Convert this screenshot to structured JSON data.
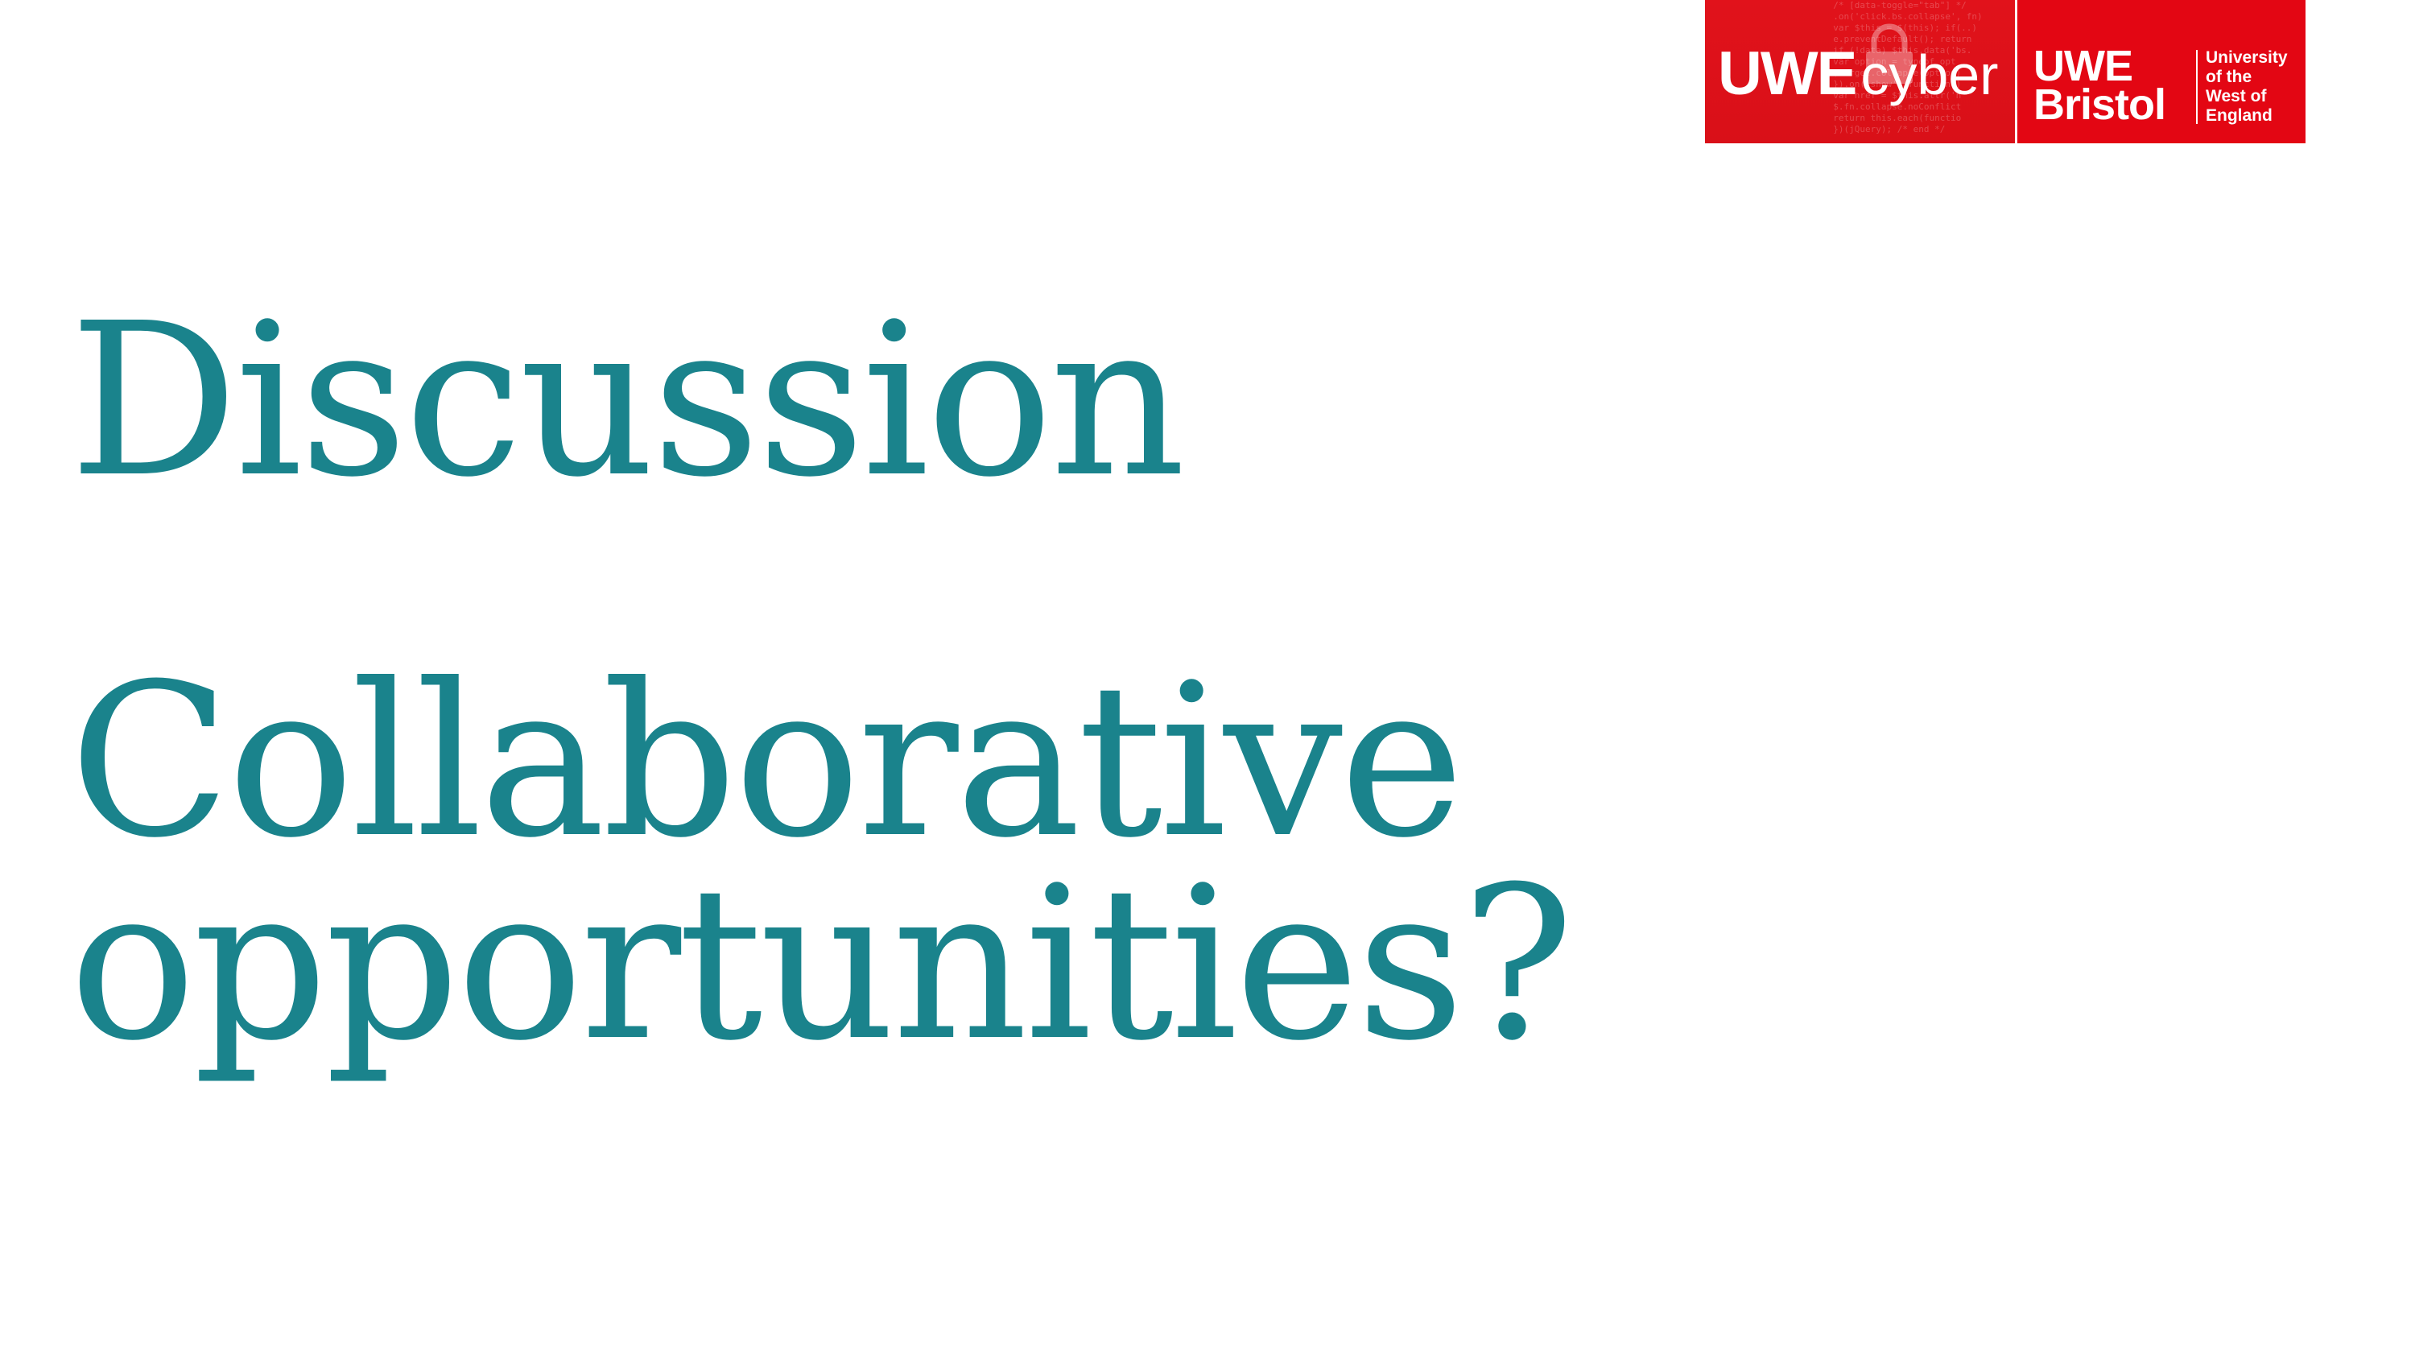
{
  "logo": {
    "cyber_prefix": "UWE",
    "cyber_word": "cyber",
    "uwe": "UWE",
    "bristol": "Bristol",
    "university_lines": [
      "University",
      "of the",
      "West of",
      "England"
    ],
    "brand_color": "#e30613"
  },
  "slide": {
    "title": "Discussion",
    "subtitle_lines": [
      "Collaborative",
      "opportunities?"
    ],
    "text_color": "#1a838c"
  }
}
